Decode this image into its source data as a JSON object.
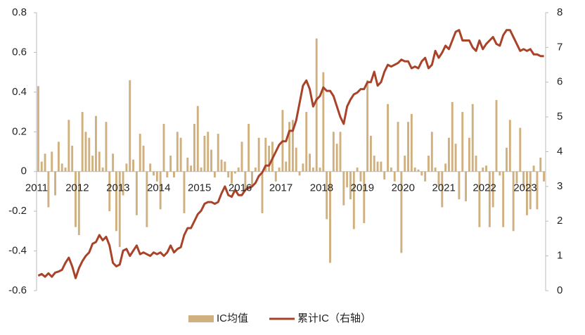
{
  "chart_data": {
    "type": "combo",
    "categories": [
      "2011",
      null,
      null,
      null,
      null,
      null,
      null,
      null,
      null,
      null,
      null,
      null,
      "2012",
      null,
      null,
      null,
      null,
      null,
      null,
      null,
      null,
      null,
      null,
      null,
      "2013",
      null,
      null,
      null,
      null,
      null,
      null,
      null,
      null,
      null,
      null,
      null,
      "2014",
      null,
      null,
      null,
      null,
      null,
      null,
      null,
      null,
      null,
      null,
      null,
      "2015",
      null,
      null,
      null,
      null,
      null,
      null,
      null,
      null,
      null,
      null,
      null,
      "2016",
      null,
      null,
      null,
      null,
      null,
      null,
      null,
      null,
      null,
      null,
      null,
      "2017",
      null,
      null,
      null,
      null,
      null,
      null,
      null,
      null,
      null,
      null,
      null,
      "2018",
      null,
      null,
      null,
      null,
      null,
      null,
      null,
      null,
      null,
      null,
      null,
      "2019",
      null,
      null,
      null,
      null,
      null,
      null,
      null,
      null,
      null,
      null,
      null,
      "2020",
      null,
      null,
      null,
      null,
      null,
      null,
      null,
      null,
      null,
      null,
      null,
      "2021",
      null,
      null,
      null,
      null,
      null,
      null,
      null,
      null,
      null,
      null,
      null,
      "2022",
      null,
      null,
      null,
      null,
      null,
      null,
      null,
      null,
      null,
      null,
      null,
      "2023",
      null,
      null,
      null,
      null,
      null
    ],
    "series": [
      {
        "name": "IC均值",
        "type": "bar",
        "color": "#cfb07e",
        "values": [
          0.43,
          0.05,
          0.09,
          -0.18,
          0.1,
          -0.12,
          0.15,
          0.04,
          0.02,
          0.26,
          0.13,
          -0.28,
          -0.32,
          0.3,
          0.2,
          0.17,
          0.08,
          0.28,
          0.1,
          0.02,
          0.25,
          -0.2,
          0.09,
          -0.3,
          -0.38,
          -0.12,
          0.04,
          0.46,
          0.06,
          -0.22,
          0.19,
          0.13,
          -0.28,
          0.04,
          -0.02,
          -0.05,
          -0.19,
          0.24,
          -0.03,
          0.08,
          -0.03,
          0.2,
          0.17,
          -0.21,
          0.07,
          0.03,
          0.24,
          0.33,
          0.02,
          0.18,
          0.2,
          0.11,
          -0.03,
          0.19,
          0.06,
          0.05,
          -0.03,
          -0.06,
          -0.01,
          0.02,
          0.15,
          -0.1,
          0.24,
          -0.08,
          0.02,
          0.17,
          -0.21,
          0.17,
          0.13,
          0.15,
          -0.05,
          0.02,
          0.31,
          0.05,
          0.25,
          0.26,
          0.12,
          -0.02,
          0.04,
          0.3,
          0.09,
          0.02,
          0.67,
          0.02,
          0.5,
          -0.24,
          -0.46,
          0.2,
          0.14,
          0.2,
          -0.17,
          -0.08,
          -0.14,
          -0.29,
          0.02,
          -0.05,
          -0.26,
          0.46,
          0.18,
          0.08,
          0.05,
          0.05,
          -0.04,
          0.34,
          0.02,
          -0.05,
          0.25,
          -0.41,
          0.08,
          0.25,
          0.29,
          0.02,
          0.01,
          -0.02,
          -0.05,
          0.08,
          0.2,
          0.02,
          -0.07,
          -0.18,
          0.04,
          0.17,
          0.35,
          0.14,
          -0.14,
          0.3,
          -0.15,
          0.17,
          0.34,
          0.08,
          -0.28,
          0.02,
          0.03,
          -0.28,
          -0.18,
          0.36,
          -0.02,
          -0.28,
          0.12,
          0.26,
          -0.3,
          -0.06,
          0.22,
          -0.08,
          -0.22,
          -0.19,
          0.03,
          -0.19,
          0.07,
          -0.05
        ]
      },
      {
        "name": "累计IC（右轴）",
        "type": "line",
        "axis": "y2",
        "color": "#a8432a",
        "values": [
          0.43,
          0.48,
          0.4,
          0.5,
          0.4,
          0.52,
          0.55,
          0.6,
          0.8,
          0.95,
          0.7,
          0.36,
          0.65,
          0.85,
          1.0,
          1.1,
          1.35,
          1.4,
          1.6,
          1.45,
          1.55,
          1.3,
          0.8,
          0.7,
          0.75,
          1.15,
          1.2,
          1.0,
          1.15,
          1.3,
          1.05,
          1.1,
          1.05,
          1.0,
          1.1,
          1.05,
          1.1,
          1.0,
          1.1,
          1.3,
          1.1,
          1.2,
          1.25,
          1.6,
          1.8,
          1.8,
          2.0,
          2.2,
          2.3,
          2.5,
          2.55,
          2.55,
          2.5,
          2.55,
          2.8,
          3.0,
          2.75,
          2.7,
          2.9,
          2.75,
          2.75,
          2.9,
          2.95,
          3.0,
          3.1,
          3.3,
          3.4,
          3.6,
          3.6,
          3.8,
          4.0,
          4.2,
          4.3,
          4.3,
          4.6,
          4.6,
          4.9,
          5.4,
          5.9,
          6.05,
          5.8,
          5.3,
          5.5,
          5.6,
          5.85,
          5.75,
          5.75,
          5.6,
          5.3,
          5.0,
          4.8,
          5.3,
          5.5,
          5.65,
          5.7,
          5.8,
          5.8,
          6.0,
          6.0,
          6.3,
          5.9,
          6.0,
          6.3,
          6.5,
          6.45,
          6.5,
          6.55,
          6.65,
          6.6,
          6.6,
          6.4,
          6.45,
          6.4,
          6.6,
          6.7,
          6.4,
          6.5,
          6.9,
          6.7,
          6.85,
          7.05,
          6.95,
          7.2,
          7.45,
          7.5,
          7.2,
          7.2,
          7.2,
          7.0,
          6.9,
          7.2,
          6.95,
          7.1,
          7.2,
          7.3,
          7.1,
          7.05,
          7.35,
          7.5,
          7.5,
          7.3,
          7.1,
          6.9,
          6.95,
          6.9,
          6.95,
          6.8,
          6.8,
          6.75,
          6.75
        ]
      }
    ],
    "ylim": [
      -0.6,
      0.8
    ],
    "yticks": [
      -0.6,
      -0.4,
      -0.2,
      0,
      0.2,
      0.4,
      0.6,
      0.8
    ],
    "y2lim": [
      0,
      8
    ],
    "y2ticks": [
      0,
      1,
      2,
      3,
      4,
      5,
      6,
      7,
      8
    ],
    "legend": "bottom"
  }
}
